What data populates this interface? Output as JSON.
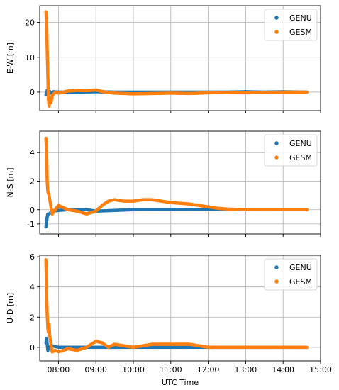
{
  "figure": {
    "xlabel": "UTC Time",
    "x_ticks": [
      "08:00",
      "09:00",
      "10:00",
      "11:00",
      "12:00",
      "13:00",
      "14:00",
      "15:00"
    ]
  },
  "colors": {
    "GENU": "#1f77b4",
    "GESM": "#ff7f0e",
    "grid": "#b0b0b0",
    "axis": "#000000"
  },
  "chart_data": [
    {
      "type": "scatter",
      "ylabel": "E-W [m]",
      "xlim": [
        "07:30",
        "15:00"
      ],
      "ylim": [
        -5.3,
        24.8
      ],
      "y_ticks": [
        0,
        10,
        20
      ],
      "grid": true,
      "legend": "top-right",
      "series": [
        {
          "name": "GENU",
          "x": [
            "07:40",
            "07:42",
            "07:44",
            "07:46",
            "07:48",
            "07:52",
            "08:00",
            "08:15",
            "08:30",
            "09:00",
            "09:30",
            "10:00",
            "10:30",
            "11:00",
            "11:30",
            "12:00",
            "12:30",
            "13:00",
            "13:30",
            "14:00",
            "14:38"
          ],
          "y": [
            -0.8,
            0.5,
            -0.5,
            0.2,
            -0.3,
            0.1,
            0.0,
            0.0,
            0.0,
            0.1,
            0.0,
            0.0,
            0.0,
            0.0,
            0.0,
            0.0,
            0.0,
            0.1,
            0.0,
            0.1,
            0.0
          ]
        },
        {
          "name": "GESM",
          "x": [
            "07:40",
            "07:41",
            "07:42",
            "07:43",
            "07:44",
            "07:45",
            "07:46",
            "07:48",
            "07:50",
            "07:55",
            "08:00",
            "08:15",
            "08:30",
            "08:45",
            "09:00",
            "09:15",
            "09:30",
            "10:00",
            "10:30",
            "11:00",
            "11:30",
            "12:00",
            "12:30",
            "13:00",
            "13:30",
            "14:00",
            "14:38"
          ],
          "y": [
            23.0,
            20.0,
            12.0,
            5.0,
            -2.0,
            -4.0,
            -2.0,
            -3.0,
            -1.0,
            0.0,
            -0.3,
            0.3,
            0.5,
            0.4,
            0.6,
            0.0,
            -0.3,
            -0.5,
            -0.4,
            -0.3,
            -0.4,
            -0.2,
            -0.1,
            -0.2,
            -0.1,
            0.0,
            0.0
          ]
        }
      ]
    },
    {
      "type": "scatter",
      "ylabel": "N-S [m]",
      "xlim": [
        "07:30",
        "15:00"
      ],
      "ylim": [
        -1.7,
        5.5
      ],
      "y_ticks": [
        -1,
        0,
        2,
        4
      ],
      "grid": true,
      "legend": "top-right",
      "series": [
        {
          "name": "GENU",
          "x": [
            "07:40",
            "07:41",
            "07:42",
            "07:43",
            "07:45",
            "07:50",
            "08:00",
            "08:15",
            "08:30",
            "08:45",
            "09:00",
            "09:30",
            "10:00",
            "10:30",
            "11:00",
            "11:30",
            "12:00",
            "12:30",
            "13:00",
            "13:30",
            "14:00",
            "14:38"
          ],
          "y": [
            -1.2,
            -0.9,
            -0.5,
            -0.3,
            -0.3,
            -0.1,
            -0.05,
            0.0,
            0.0,
            0.0,
            -0.1,
            -0.05,
            0.0,
            0.0,
            0.0,
            0.0,
            0.0,
            0.0,
            0.0,
            0.0,
            0.0,
            0.0
          ]
        },
        {
          "name": "GESM",
          "x": [
            "07:40",
            "07:41",
            "07:42",
            "07:43",
            "07:45",
            "07:50",
            "08:00",
            "08:15",
            "08:30",
            "08:45",
            "09:00",
            "09:10",
            "09:20",
            "09:30",
            "09:45",
            "10:00",
            "10:15",
            "10:30",
            "10:45",
            "11:00",
            "11:30",
            "12:00",
            "12:15",
            "12:30",
            "13:00",
            "13:30",
            "14:00",
            "14:38"
          ],
          "y": [
            5.0,
            4.0,
            2.0,
            1.3,
            1.0,
            -0.3,
            0.3,
            0.0,
            -0.1,
            -0.3,
            -0.1,
            0.3,
            0.6,
            0.7,
            0.6,
            0.6,
            0.7,
            0.7,
            0.6,
            0.5,
            0.4,
            0.2,
            0.1,
            0.05,
            0.0,
            0.0,
            0.0,
            0.0
          ]
        }
      ]
    },
    {
      "type": "scatter",
      "ylabel": "U-D [m]",
      "xlim": [
        "07:30",
        "15:00"
      ],
      "ylim": [
        -0.9,
        6.1
      ],
      "y_ticks": [
        0,
        2,
        4,
        6
      ],
      "grid": true,
      "legend": "top-right",
      "series": [
        {
          "name": "GENU",
          "x": [
            "07:40",
            "07:41",
            "07:42",
            "07:43",
            "07:45",
            "07:50",
            "08:00",
            "08:15",
            "08:30",
            "09:00",
            "09:30",
            "10:00",
            "10:30",
            "11:00",
            "11:30",
            "12:00",
            "12:30",
            "13:00",
            "13:30",
            "14:00",
            "14:38"
          ],
          "y": [
            0.3,
            0.6,
            0.2,
            -0.2,
            0.0,
            0.1,
            0.0,
            0.0,
            0.0,
            0.0,
            0.0,
            0.0,
            0.0,
            0.0,
            0.0,
            0.0,
            0.0,
            0.0,
            0.0,
            0.0,
            0.0
          ]
        },
        {
          "name": "GESM",
          "x": [
            "07:40",
            "07:40.5",
            "07:41",
            "07:42",
            "07:43",
            "07:44",
            "07:45",
            "07:46",
            "07:48",
            "07:50",
            "07:55",
            "08:00",
            "08:15",
            "08:30",
            "08:45",
            "09:00",
            "09:10",
            "09:20",
            "09:30",
            "09:45",
            "10:00",
            "10:30",
            "11:00",
            "11:30",
            "12:00",
            "12:30",
            "13:00",
            "13:30",
            "14:00",
            "14:38"
          ],
          "y": [
            5.8,
            4.6,
            3.4,
            2.2,
            1.3,
            1.0,
            1.5,
            0.8,
            0.2,
            -0.3,
            -0.2,
            -0.3,
            -0.1,
            -0.2,
            0.0,
            0.4,
            0.3,
            0.0,
            0.2,
            0.1,
            0.0,
            0.2,
            0.2,
            0.2,
            0.0,
            0.0,
            0.0,
            0.0,
            0.0,
            0.0
          ]
        }
      ]
    }
  ]
}
